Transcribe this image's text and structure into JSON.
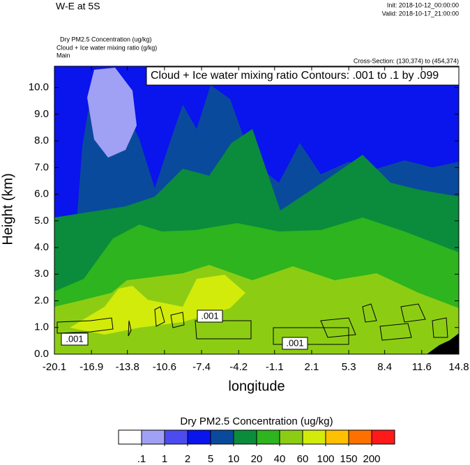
{
  "chart_data": {
    "type": "contour",
    "title": "W-E at 5S",
    "init": "Init: 2018-10-12_00:00:00",
    "valid": "Valid: 2018-10-17_21:00:00",
    "field_labels": [
      "Dry PM2.5 Concentration   (ug/kg)",
      "Cloud + Ice water mixing ratio   (g/kg)",
      "Main"
    ],
    "cross_section": "Cross-Section: (130,374) to (454,374)",
    "contour_info": "Cloud + Ice water mixing ratio Contours: .001 to .1 by .099",
    "contour_labels": [
      ".001",
      ".001",
      ".001"
    ],
    "x_label": "longitude",
    "y_label": "Height (km)",
    "xlim": [
      -20.1,
      14.8
    ],
    "xticks": [
      -20.1,
      -16.9,
      -13.8,
      -10.6,
      -7.4,
      -4.2,
      -1.1,
      2.1,
      5.3,
      8.4,
      11.6,
      14.8
    ],
    "ylim": [
      0,
      10.8
    ],
    "yticks": [
      {
        "value": 0,
        "label": "0.0"
      },
      {
        "value": 1,
        "label": "1.0"
      },
      {
        "value": 2,
        "label": "2.0"
      },
      {
        "value": 3,
        "label": "3.0"
      },
      {
        "value": 4,
        "label": "4.0"
      },
      {
        "value": 5,
        "label": "5.0"
      },
      {
        "value": 6,
        "label": "6.0"
      },
      {
        "value": 7,
        "label": "7.0"
      },
      {
        "value": 8,
        "label": "8.0"
      },
      {
        "value": 9,
        "label": "9.0"
      },
      {
        "value": 10,
        "label": "10.0"
      }
    ],
    "colorbar_title": "Dry PM2.5 Concentration  (ug/kg)",
    "levels": [
      {
        "value": 0.1,
        "label": ".1"
      },
      1,
      2,
      5,
      10,
      20,
      40,
      60,
      100,
      150,
      200
    ],
    "colors": [
      "#ffffff",
      "#a0a0f5",
      "#4b4bf0",
      "#0a14ec",
      "#0a4a9c",
      "#0a8c3c",
      "#2db41e",
      "#8ccd14",
      "#d2eb0a",
      "#ffc000",
      "#ff7000",
      "#ff1a1a"
    ]
  }
}
